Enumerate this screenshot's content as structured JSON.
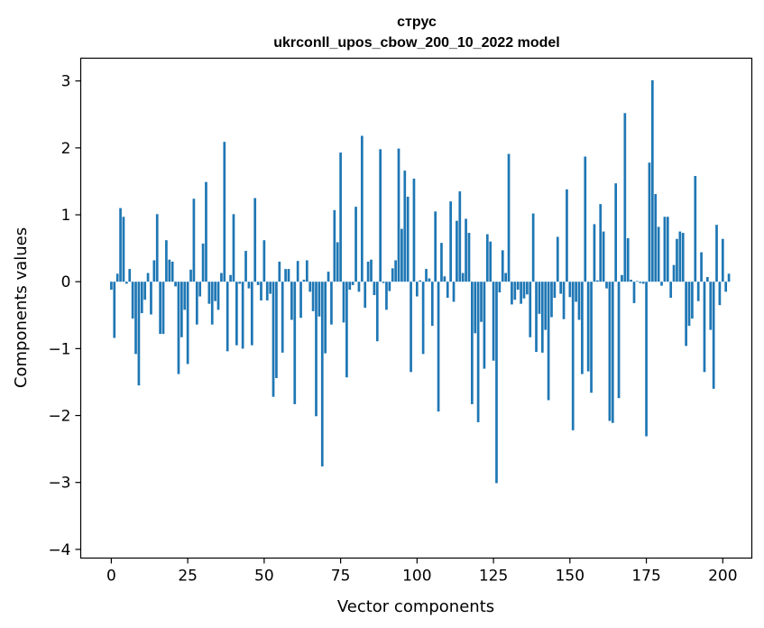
{
  "chart_data": {
    "type": "bar",
    "title": "струс",
    "subtitle": "ukrconll_upos_cbow_200_10_2022 model",
    "xlabel": "Vector components",
    "ylabel": "Components values",
    "xlim": [
      -10,
      209.5
    ],
    "ylim": [
      -4.13,
      3.34
    ],
    "xticks": [
      0,
      25,
      50,
      75,
      100,
      125,
      150,
      175,
      200
    ],
    "yticks": [
      -4,
      -3,
      -2,
      -1,
      0,
      1,
      2,
      3
    ],
    "xtick_labels": [
      "0",
      "25",
      "50",
      "75",
      "100",
      "125",
      "150",
      "175",
      "200"
    ],
    "ytick_labels": [
      "−4",
      "−3",
      "−2",
      "−1",
      "0",
      "1",
      "2",
      "3"
    ],
    "bar_color": "#1f77b4",
    "grid": false,
    "values": [
      -0.12,
      -0.84,
      0.12,
      1.1,
      0.97,
      -0.03,
      0.19,
      -0.55,
      -1.08,
      -1.55,
      -0.47,
      -0.27,
      0.13,
      -0.49,
      0.32,
      1.01,
      -0.78,
      -0.78,
      0.62,
      0.33,
      0.3,
      -0.07,
      -1.38,
      -0.83,
      -0.42,
      -1.23,
      0.18,
      1.24,
      -0.64,
      -0.22,
      0.57,
      1.49,
      -0.33,
      -0.64,
      -0.29,
      -0.42,
      0.13,
      2.09,
      -1.04,
      0.1,
      1.01,
      -0.95,
      -0.03,
      -1.0,
      0.46,
      -0.1,
      -0.95,
      1.25,
      -0.05,
      -0.28,
      0.62,
      -0.28,
      -0.18,
      -1.72,
      -1.44,
      0.3,
      -1.06,
      0.19,
      0.19,
      -0.57,
      -1.83,
      0.31,
      -0.54,
      0.03,
      0.32,
      -0.15,
      -0.44,
      -2.01,
      -0.52,
      -2.76,
      -1.07,
      0.15,
      -0.64,
      1.07,
      0.59,
      1.93,
      -0.61,
      -1.43,
      -0.12,
      -0.05,
      1.12,
      -0.15,
      2.18,
      -0.39,
      0.3,
      0.33,
      -0.2,
      -0.89,
      1.98,
      -0.02,
      -0.42,
      -0.14,
      0.2,
      0.32,
      1.99,
      0.79,
      1.66,
      1.27,
      -1.35,
      1.54,
      -0.22,
      0.02,
      -1.08,
      0.19,
      0.05,
      -0.66,
      1.05,
      -1.94,
      0.58,
      0.08,
      -0.24,
      1.2,
      -0.3,
      0.91,
      1.35,
      0.13,
      0.94,
      0.73,
      -1.83,
      -0.77,
      -2.1,
      -0.6,
      -1.3,
      0.71,
      0.6,
      -1.18,
      -3.01,
      -0.16,
      0.47,
      0.13,
      1.91,
      -0.34,
      -0.27,
      -0.12,
      -0.33,
      -0.25,
      -0.19,
      -0.83,
      1.02,
      -1.05,
      -0.48,
      -1.06,
      -0.72,
      -1.77,
      -0.53,
      -0.24,
      0.67,
      -0.18,
      -0.56,
      1.38,
      -0.23,
      -2.22,
      -0.3,
      -0.57,
      -1.38,
      1.87,
      -1.34,
      -1.66,
      0.86,
      0.02,
      1.16,
      0.75,
      -0.1,
      -2.08,
      -2.11,
      1.47,
      -1.74,
      0.1,
      2.52,
      0.65,
      0.03,
      -0.32,
      0.01,
      -0.02,
      -0.03,
      -2.31,
      1.78,
      3.01,
      1.31,
      0.82,
      -0.06,
      0.97,
      0.97,
      -0.24,
      0.25,
      0.64,
      0.75,
      0.73,
      -0.96,
      -0.66,
      -0.55,
      1.58,
      -0.29,
      0.44,
      -1.35,
      0.07,
      -0.72,
      -1.6,
      0.85,
      -0.35,
      0.64,
      -0.15,
      0.12
    ]
  }
}
